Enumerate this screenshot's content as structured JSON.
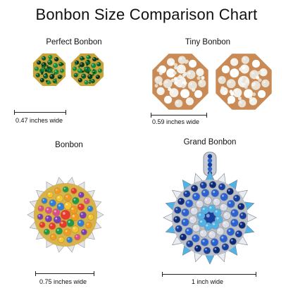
{
  "title": "Bonbon Size Comparison Chart",
  "items": [
    {
      "name": "Perfect Bonbon",
      "width_label": "0.47 inches wide",
      "width_in": 0.47,
      "stone_colors": [
        "#0b5e2a",
        "#138a3d",
        "#06391a"
      ],
      "metal": "#c8a23a"
    },
    {
      "name": "Tiny Bonbon",
      "width_label": "0.59 inches wide",
      "width_in": 0.59,
      "stone_colors": [
        "#f4f1ea",
        "#e8e2d6",
        "#ffffff"
      ],
      "metal": "#c98a55"
    },
    {
      "name": "Bonbon",
      "width_label": "0.75 inches wide",
      "width_in": 0.75,
      "stone_colors": [
        "#e63b2e",
        "#f29a1f",
        "#2f7fd6",
        "#7a3fb5",
        "#1f9a4a",
        "#f4c430",
        "#d94f8a"
      ],
      "metal": "#d8b24a"
    },
    {
      "name": "Grand Bonbon",
      "width_label": "1 inch wide",
      "width_in": 1.0,
      "stone_colors": [
        "#173f9e",
        "#2a63d1",
        "#4fb3e8",
        "#d9dde6",
        "#0c2a78"
      ],
      "metal": "#b9bec7"
    }
  ]
}
